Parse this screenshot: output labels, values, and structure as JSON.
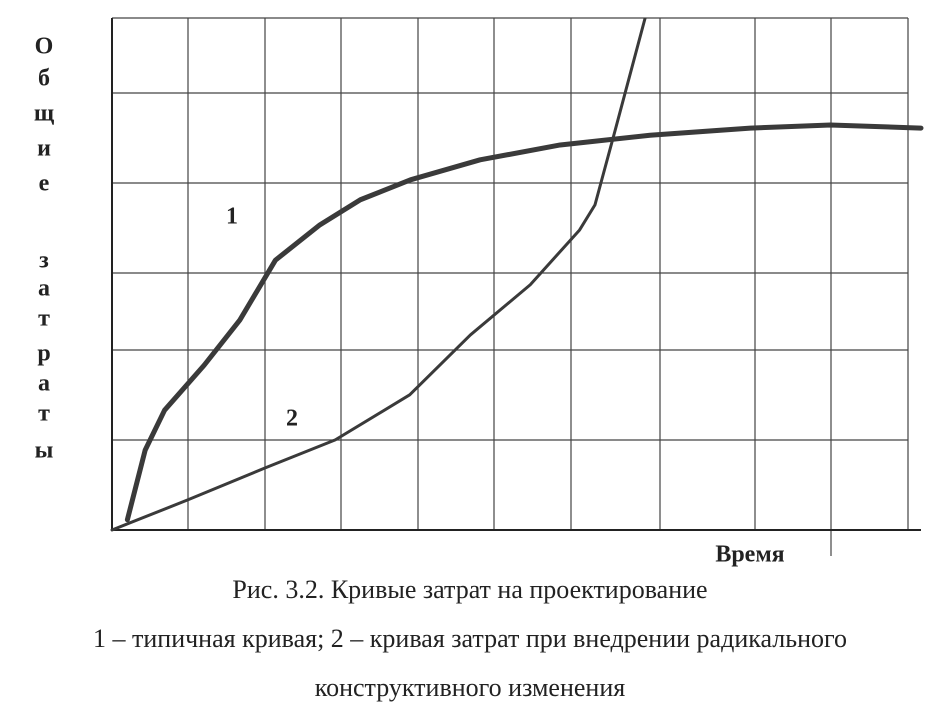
{
  "chart_data": {
    "type": "line",
    "xlabel": "Время",
    "ylabel": [
      "О",
      "б",
      "щ",
      "и",
      "е",
      "з",
      "а",
      "т",
      "р",
      "а",
      "т",
      "ы"
    ],
    "annotations": [
      "1",
      "2"
    ],
    "caption": [
      "Рис. 3.2. Кривые затрат на проектирование",
      "1 – типичная кривая; 2 – кривая затрат при внедрении радикального",
      "конструктивного изменения"
    ],
    "xlim": [
      0,
      100
    ],
    "ylim": [
      0,
      100
    ],
    "grid": true,
    "series": [
      {
        "color": "#3a3a3a",
        "x": [
          1.9,
          4.1,
          6.5,
          11.4,
          15.8,
          20.2,
          25.7,
          30.7,
          36.9,
          45.5,
          55.4,
          66.5,
          78.9,
          88.8,
          100
        ],
        "values": [
          2.0,
          15.6,
          23.4,
          32.2,
          41.0,
          52.7,
          59.6,
          64.5,
          68.4,
          72.3,
          75.2,
          77.1,
          78.5,
          79.1,
          78.5
        ]
      },
      {
        "color": "#3a3a3a",
        "x": [
          0,
          9.4,
          18.9,
          27.6,
          36.8,
          44.3,
          51.7,
          57.8,
          59.7,
          62.2,
          65.9
        ],
        "values": [
          0,
          5.9,
          12.1,
          17.6,
          26.4,
          38.1,
          47.9,
          58.6,
          63.5,
          78.1,
          100
        ]
      }
    ]
  }
}
